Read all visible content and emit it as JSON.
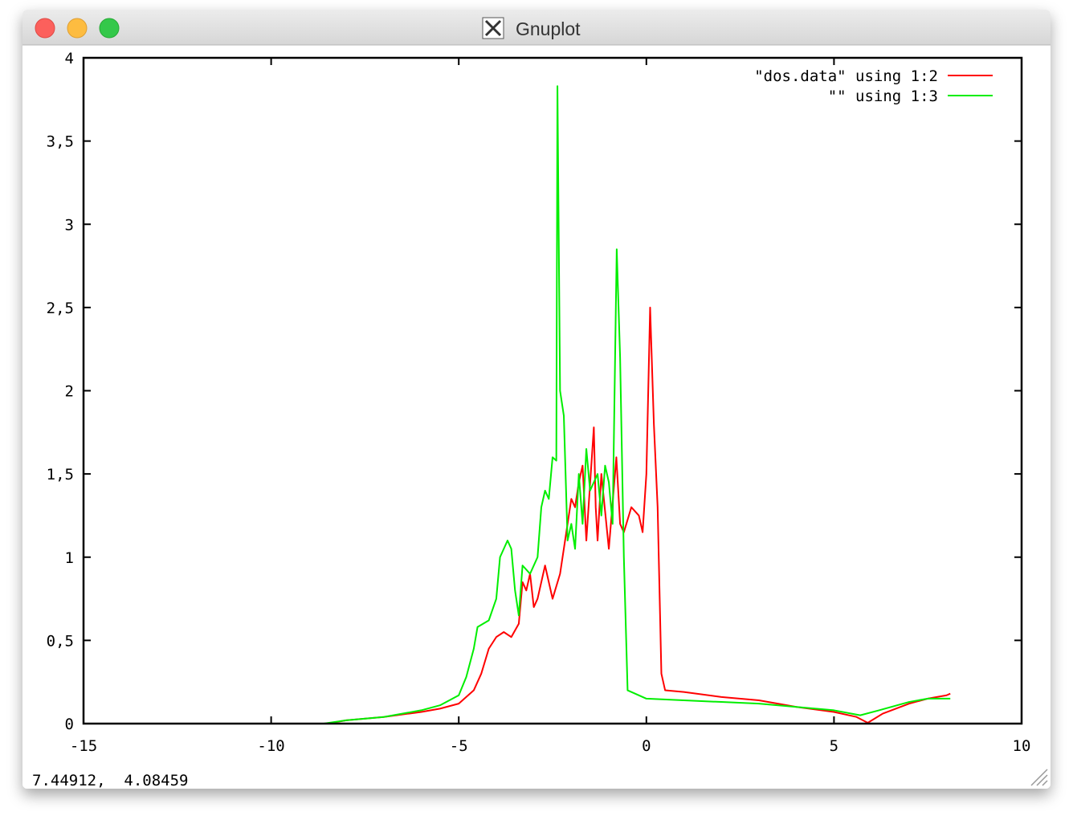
{
  "window": {
    "title": "Gnuplot",
    "status": "7.44912,  4.08459"
  },
  "chart_data": {
    "type": "line",
    "xlim": [
      -15,
      10
    ],
    "ylim": [
      0,
      4
    ],
    "xticks": [
      -15,
      -10,
      -5,
      0,
      5,
      10
    ],
    "yticks": [
      0,
      {
        "value": 0.5,
        "label": "0,5"
      },
      1,
      {
        "value": 1.5,
        "label": "1,5"
      },
      2,
      {
        "value": 2.5,
        "label": "2,5"
      },
      3,
      {
        "value": 3.5,
        "label": "3,5"
      },
      4
    ],
    "legend": "upper right",
    "series": [
      {
        "name": "\"dos.data\" using 1:2",
        "color": "#ff0000",
        "x": [
          -8.5,
          -8,
          -7,
          -6,
          -5.5,
          -5,
          -4.6,
          -4.4,
          -4.2,
          -4.0,
          -3.8,
          -3.6,
          -3.4,
          -3.3,
          -3.2,
          -3.1,
          -3.0,
          -2.9,
          -2.7,
          -2.5,
          -2.3,
          -2.1,
          -2.0,
          -1.9,
          -1.8,
          -1.7,
          -1.6,
          -1.4,
          -1.35,
          -1.3,
          -1.2,
          -1.0,
          -0.8,
          -0.7,
          -0.6,
          -0.4,
          -0.2,
          -0.1,
          0.0,
          0.1,
          0.2,
          0.3,
          0.4,
          0.5,
          1,
          2,
          3,
          4,
          5,
          5.6,
          5.9,
          6.3,
          7,
          7.5,
          8.0,
          8.1
        ],
        "values": [
          0,
          0.02,
          0.04,
          0.07,
          0.09,
          0.12,
          0.2,
          0.3,
          0.45,
          0.52,
          0.55,
          0.52,
          0.6,
          0.85,
          0.8,
          0.9,
          0.7,
          0.75,
          0.95,
          0.75,
          0.9,
          1.2,
          1.35,
          1.3,
          1.45,
          1.55,
          1.1,
          1.78,
          1.3,
          1.1,
          1.5,
          1.05,
          1.6,
          1.2,
          1.15,
          1.3,
          1.25,
          1.15,
          1.5,
          2.5,
          1.8,
          1.3,
          0.3,
          0.2,
          0.19,
          0.16,
          0.14,
          0.1,
          0.07,
          0.04,
          0.005,
          0.06,
          0.12,
          0.15,
          0.17,
          0.18
        ]
      },
      {
        "name": "\"\" using 1:3",
        "color": "#00ee00",
        "x": [
          -8.6,
          -8,
          -7,
          -6,
          -5.5,
          -5,
          -4.8,
          -4.6,
          -4.5,
          -4.2,
          -4.0,
          -3.9,
          -3.7,
          -3.6,
          -3.5,
          -3.4,
          -3.3,
          -3.1,
          -2.9,
          -2.8,
          -2.7,
          -2.6,
          -2.5,
          -2.4,
          -2.37,
          -2.3,
          -2.2,
          -2.1,
          -2.0,
          -1.9,
          -1.8,
          -1.7,
          -1.6,
          -1.5,
          -1.3,
          -1.2,
          -1.1,
          -1.0,
          -0.9,
          -0.79,
          -0.7,
          -0.6,
          -0.5,
          -0.3,
          0,
          1,
          2,
          3,
          4,
          5,
          5.7,
          6.2,
          7,
          7.5,
          8.1
        ],
        "values": [
          0,
          0.02,
          0.04,
          0.08,
          0.11,
          0.17,
          0.28,
          0.45,
          0.58,
          0.62,
          0.75,
          1.0,
          1.1,
          1.05,
          0.8,
          0.65,
          0.95,
          0.9,
          1.0,
          1.3,
          1.4,
          1.35,
          1.6,
          1.58,
          3.83,
          2.0,
          1.85,
          1.1,
          1.2,
          1.05,
          1.5,
          1.2,
          1.65,
          1.4,
          1.5,
          1.25,
          1.55,
          1.45,
          1.2,
          2.85,
          2.2,
          1.0,
          0.2,
          0.18,
          0.15,
          0.14,
          0.13,
          0.12,
          0.1,
          0.08,
          0.05,
          0.08,
          0.13,
          0.15,
          0.15
        ]
      }
    ]
  }
}
